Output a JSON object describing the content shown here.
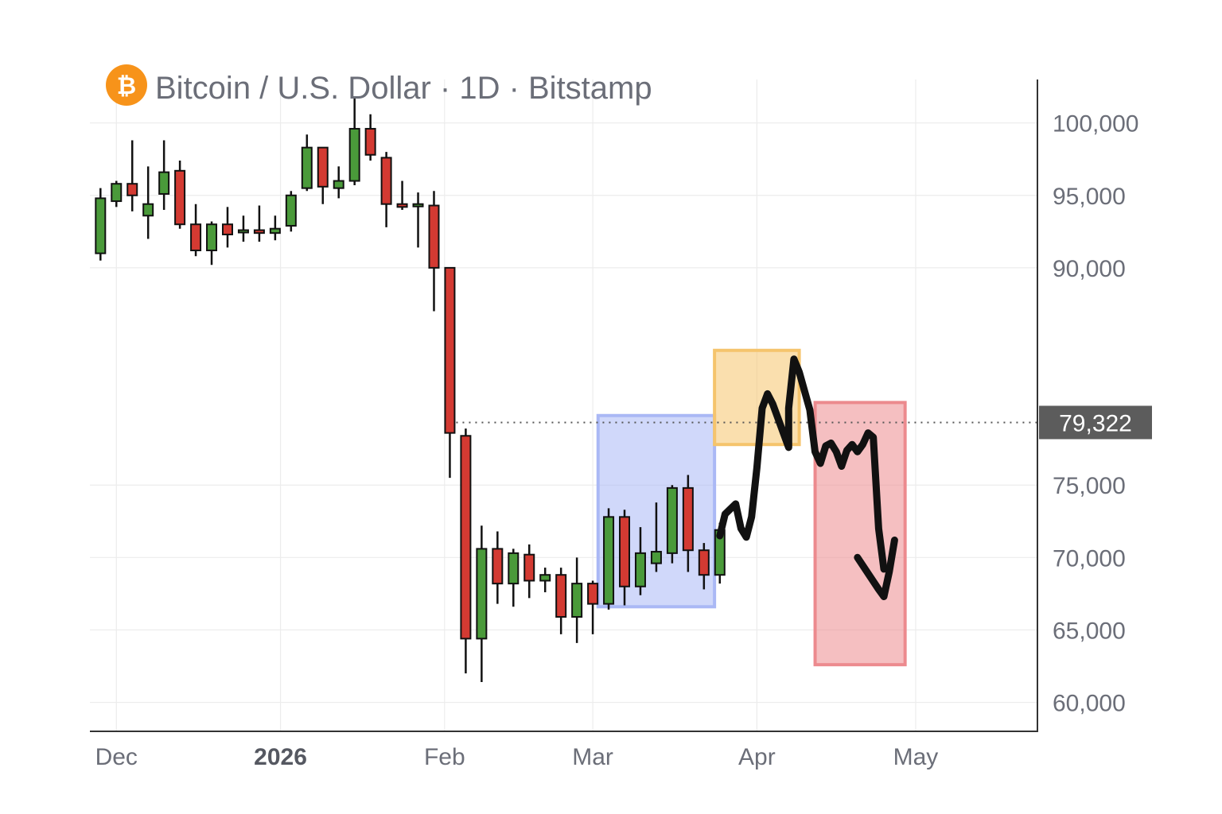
{
  "header": {
    "title": "Bitcoin / U.S. Dollar · 1D · Bitstamp",
    "logo_icon": "bitcoin-icon",
    "logo_color": "#f7931a"
  },
  "colors": {
    "up": "#4a9a3a",
    "down": "#d33a32",
    "wick": "#111111",
    "grid": "#ececec",
    "axis": "#333333",
    "price_label_bg": "#5c5c5c",
    "box_blue": "#aab8f5",
    "box_orange": "#f5c46c",
    "box_red": "#ec8a8e",
    "drawing": "#111111"
  },
  "chart_data": {
    "type": "candlestick",
    "title": "Bitcoin / U.S. Dollar · 1D · Bitstamp",
    "ylim": [
      58000,
      103000
    ],
    "y_ticks": [
      100000,
      95000,
      90000,
      79322,
      75000,
      70000,
      65000,
      60000
    ],
    "y_tick_labels": [
      "100,000",
      "95,000",
      "90,000",
      "",
      "75,000",
      "70,000",
      "65,000",
      "60,000"
    ],
    "x_ticks": [
      {
        "label": "Dec",
        "date": "2025-12-01",
        "bold": false
      },
      {
        "label": "2026",
        "date": "2026-01-01",
        "bold": true
      },
      {
        "label": "Feb",
        "date": "2026-02-01",
        "bold": false
      },
      {
        "label": "Mar",
        "date": "2026-03-01",
        "bold": false
      },
      {
        "label": "Apr",
        "date": "2026-04-01",
        "bold": false
      },
      {
        "label": "May",
        "date": "2026-05-01",
        "bold": false
      }
    ],
    "xlim": [
      "2025-11-26",
      "2026-05-24"
    ],
    "current_price": 79322,
    "current_price_label": "79,322",
    "grid": true,
    "candles": [
      {
        "date": "2025-11-28",
        "open": 91000,
        "high": 95500,
        "low": 90500,
        "close": 94800
      },
      {
        "date": "2025-12-01",
        "open": 94600,
        "high": 96000,
        "low": 94200,
        "close": 95800
      },
      {
        "date": "2025-12-04",
        "open": 95800,
        "high": 98800,
        "low": 93900,
        "close": 95000
      },
      {
        "date": "2025-12-07",
        "open": 93600,
        "high": 97000,
        "low": 92000,
        "close": 94400
      },
      {
        "date": "2025-12-10",
        "open": 95100,
        "high": 98800,
        "low": 94000,
        "close": 96600
      },
      {
        "date": "2025-12-13",
        "open": 96700,
        "high": 97400,
        "low": 92700,
        "close": 93000
      },
      {
        "date": "2025-12-16",
        "open": 93000,
        "high": 94400,
        "low": 90800,
        "close": 91200
      },
      {
        "date": "2025-12-19",
        "open": 91200,
        "high": 93200,
        "low": 90200,
        "close": 93000
      },
      {
        "date": "2025-12-22",
        "open": 93000,
        "high": 94200,
        "low": 91400,
        "close": 92300
      },
      {
        "date": "2025-12-25",
        "open": 92600,
        "high": 93600,
        "low": 91800,
        "close": 92600
      },
      {
        "date": "2025-12-28",
        "open": 92600,
        "high": 94300,
        "low": 91800,
        "close": 92400
      },
      {
        "date": "2025-12-31",
        "open": 92400,
        "high": 93600,
        "low": 91900,
        "close": 92700
      },
      {
        "date": "2026-01-03",
        "open": 92900,
        "high": 95300,
        "low": 92500,
        "close": 95000
      },
      {
        "date": "2026-01-06",
        "open": 95500,
        "high": 99200,
        "low": 95300,
        "close": 98300
      },
      {
        "date": "2026-01-09",
        "open": 98300,
        "high": 98300,
        "low": 94400,
        "close": 95600
      },
      {
        "date": "2026-01-12",
        "open": 95500,
        "high": 97000,
        "low": 94800,
        "close": 96000
      },
      {
        "date": "2026-01-15",
        "open": 96000,
        "high": 101800,
        "low": 95700,
        "close": 99600
      },
      {
        "date": "2026-01-18",
        "open": 99600,
        "high": 100600,
        "low": 97400,
        "close": 97800
      },
      {
        "date": "2026-01-21",
        "open": 97600,
        "high": 98000,
        "low": 92800,
        "close": 94400
      },
      {
        "date": "2026-01-24",
        "open": 94400,
        "high": 96000,
        "low": 94000,
        "close": 94200
      },
      {
        "date": "2026-01-27",
        "open": 94400,
        "high": 95200,
        "low": 91400,
        "close": 94400
      },
      {
        "date": "2026-01-30",
        "open": 94300,
        "high": 95300,
        "low": 87000,
        "close": 90000
      },
      {
        "date": "2026-02-02",
        "open": 90000,
        "high": 90000,
        "low": 75500,
        "close": 78600
      },
      {
        "date": "2026-02-05",
        "open": 78400,
        "high": 78900,
        "low": 62000,
        "close": 64400
      },
      {
        "date": "2026-02-08",
        "open": 64400,
        "high": 72200,
        "low": 61400,
        "close": 70600
      },
      {
        "date": "2026-02-11",
        "open": 70600,
        "high": 71800,
        "low": 66800,
        "close": 68200
      },
      {
        "date": "2026-02-14",
        "open": 68200,
        "high": 70600,
        "low": 66600,
        "close": 70300
      },
      {
        "date": "2026-02-17",
        "open": 70200,
        "high": 70900,
        "low": 67200,
        "close": 68400
      },
      {
        "date": "2026-02-20",
        "open": 68400,
        "high": 69300,
        "low": 67600,
        "close": 68800
      },
      {
        "date": "2026-02-23",
        "open": 68800,
        "high": 69300,
        "low": 64700,
        "close": 65900
      },
      {
        "date": "2026-02-26",
        "open": 65900,
        "high": 70000,
        "low": 64100,
        "close": 68200
      },
      {
        "date": "2026-03-01",
        "open": 68200,
        "high": 68400,
        "low": 64700,
        "close": 66800
      },
      {
        "date": "2026-03-04",
        "open": 66800,
        "high": 73400,
        "low": 66400,
        "close": 72800
      },
      {
        "date": "2026-03-07",
        "open": 72800,
        "high": 73300,
        "low": 66700,
        "close": 68000
      },
      {
        "date": "2026-03-10",
        "open": 68000,
        "high": 72100,
        "low": 67400,
        "close": 70300
      },
      {
        "date": "2026-03-13",
        "open": 69600,
        "high": 73800,
        "low": 69000,
        "close": 70400
      },
      {
        "date": "2026-03-16",
        "open": 70300,
        "high": 75000,
        "low": 69600,
        "close": 74800
      },
      {
        "date": "2026-03-19",
        "open": 74800,
        "high": 75700,
        "low": 69000,
        "close": 70500
      },
      {
        "date": "2026-03-22",
        "open": 70500,
        "high": 71000,
        "low": 67800,
        "close": 68800
      },
      {
        "date": "2026-03-25",
        "open": 68800,
        "high": 72400,
        "low": 68200,
        "close": 71900
      }
    ],
    "zones": [
      {
        "name": "blue-zone",
        "color": "box_blue",
        "x_from": "2026-03-02",
        "x_to": "2026-03-24",
        "y_from": 66600,
        "y_to": 79800
      },
      {
        "name": "orange-zone",
        "color": "box_orange",
        "x_from": "2026-03-24",
        "x_to": "2026-04-09",
        "y_from": 77800,
        "y_to": 84300
      },
      {
        "name": "red-zone",
        "color": "box_red",
        "x_from": "2026-04-12",
        "x_to": "2026-04-29",
        "y_from": 62600,
        "y_to": 80700
      }
    ],
    "drawing": {
      "path": [
        [
          "2026-03-25",
          71500
        ],
        [
          "2026-03-26",
          73000
        ],
        [
          "2026-03-28",
          73700
        ],
        [
          "2026-03-29",
          72000
        ],
        [
          "2026-03-30",
          71400
        ],
        [
          "2026-03-31",
          72800
        ],
        [
          "2026-04-01",
          76200
        ],
        [
          "2026-04-02",
          80300
        ],
        [
          "2026-04-03",
          81300
        ],
        [
          "2026-04-04",
          80600
        ],
        [
          "2026-04-06",
          78600
        ],
        [
          "2026-04-07",
          77600
        ],
        [
          "2026-04-07",
          80300
        ],
        [
          "2026-04-08",
          83700
        ],
        [
          "2026-04-09",
          82800
        ],
        [
          "2026-04-11",
          80200
        ],
        [
          "2026-04-12",
          77300
        ],
        [
          "2026-04-13",
          76500
        ],
        [
          "2026-04-14",
          77700
        ],
        [
          "2026-04-15",
          77900
        ],
        [
          "2026-04-16",
          77300
        ],
        [
          "2026-04-17",
          76300
        ],
        [
          "2026-04-18",
          77400
        ],
        [
          "2026-04-19",
          77800
        ],
        [
          "2026-04-20",
          77300
        ],
        [
          "2026-04-21",
          77800
        ],
        [
          "2026-04-22",
          78600
        ],
        [
          "2026-04-23",
          78300
        ],
        [
          "2026-04-24",
          72000
        ],
        [
          "2026-04-25",
          69200
        ]
      ],
      "arrow": [
        [
          "2026-04-20",
          70000
        ],
        [
          "2026-04-24",
          67800
        ],
        [
          "2026-04-25",
          67300
        ],
        [
          "2026-04-26",
          69000
        ],
        [
          "2026-04-27",
          71200
        ]
      ]
    }
  }
}
